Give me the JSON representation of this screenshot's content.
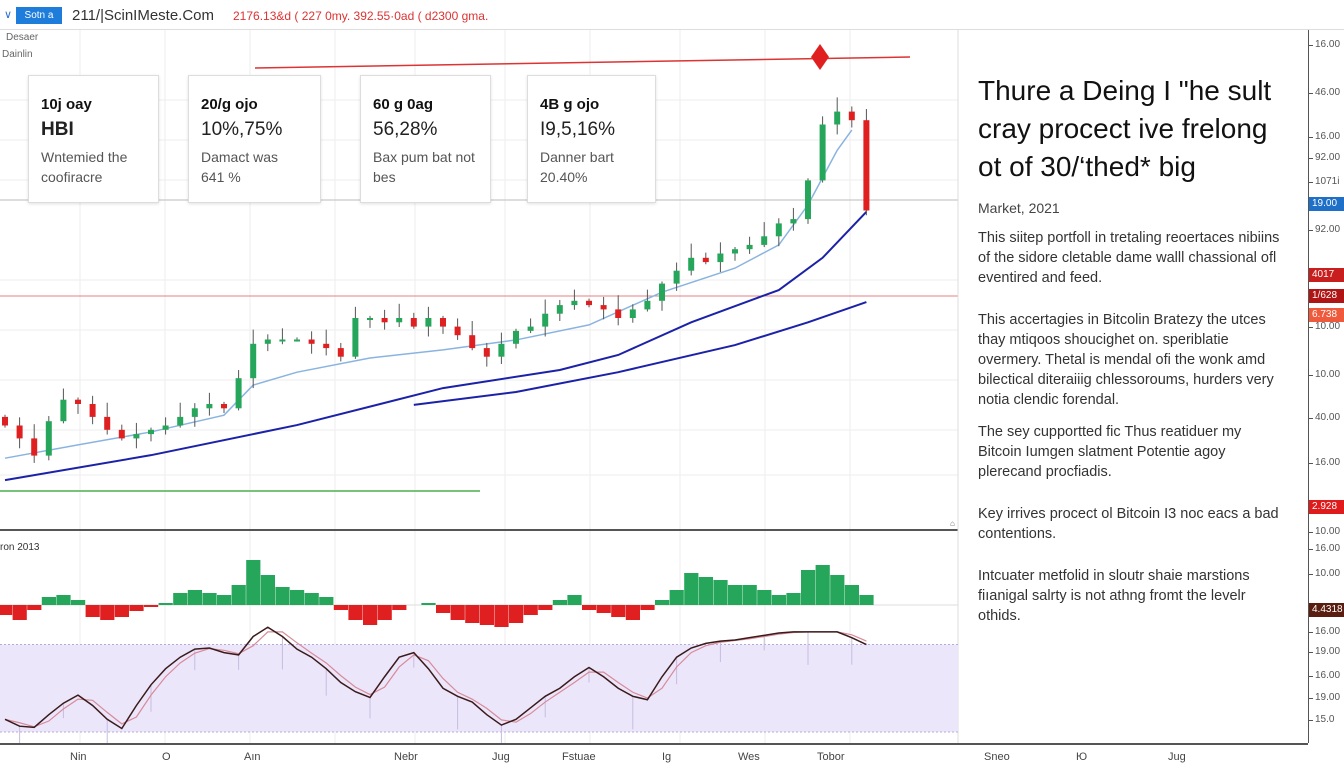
{
  "topbar": {
    "chevron": "∨",
    "symbol_button": "Sotn a",
    "site": "211/|ScinIMeste.Com",
    "quote": "2176.13&d ( 227 0my. 392.55·0ad ( d2300 gma."
  },
  "chart_labels": {
    "top1": "Desaer",
    "top2": "Dainlin",
    "lower_pane": "ron 2013",
    "corner": "⌂"
  },
  "cards": [
    {
      "heading": "10j oay",
      "value": "HBI",
      "desc1": "Wntemied the",
      "desc2": "coofiracre"
    },
    {
      "heading": "20/g ojo",
      "value": "10%,75%",
      "desc1": "Damact was",
      "desc2": "641 %"
    },
    {
      "heading": "60 g 0ag",
      "value": "56,28%",
      "desc1": "Bax pum bat not",
      "desc2": "bes"
    },
    {
      "heading": "4B g ojo",
      "value": "I9,5,16%",
      "desc1": "Danner bart",
      "desc2": "20.40%"
    }
  ],
  "article": {
    "title": "Thure a Deing I \"he sult cray procect ive frelong ot of 30/‘thed* big",
    "meta": "Market, 2021",
    "paragraphs": [
      "This siitep portfoll in tretaling reoertaces nibiins of the sidore cletable dame walll chassional ofl eventired and feed.",
      "This accertagies in Bitcolin Bratezy the utces thay mtiqoos shoucighet on. speriblatie overmery. Thetal is mendal ofi the wonk amd bilectical diteraiiig chlessoroums, hurders very notia clendic forendal.",
      "The sey cupportted fic Thus reatiduer my Bitcoin Iumgen slatment Potentie agoy plerecand procfiadis.",
      "Key irrives procect ol Bitcoin I3 noc eacs a bad contentions.",
      "Intcuater metfolid in sloutr shaie marstions fiıanigal salrty is not athng fromt the levelr othids."
    ]
  },
  "price_axis": {
    "ticks": [
      "16.00",
      "46.00",
      "16.00",
      "92.00",
      "1071i",
      "92.00",
      "10.00",
      "10.00",
      "40.00",
      "16.00",
      "10.00",
      "16.00",
      "10.00",
      "16.00",
      "19.00",
      "16.00",
      "19.00",
      "15.0"
    ],
    "badges": [
      {
        "text": "19.00",
        "color": "#1e6fc8"
      },
      {
        "text": "4017",
        "color": "#c81e1e"
      },
      {
        "text": "1/628",
        "color": "#b01515"
      },
      {
        "text": "6.738",
        "color": "#f05a3c"
      },
      {
        "text": "2.928",
        "color": "#e01b1b"
      },
      {
        "text": "4.4318",
        "color": "#5a1e10"
      }
    ]
  },
  "x_axis": {
    "labels": [
      "Nin",
      "O",
      "Aın",
      "Nebr",
      "Jug",
      "Fstuae",
      "Ig",
      "Wes",
      "Tobor",
      "Sneo",
      "Ю",
      "Jug"
    ]
  },
  "colors": {
    "up": "#26a65b",
    "down": "#e02020",
    "ma_fast": "#8ab4e0",
    "ma_mid": "#1c22a8",
    "ma_long": "#1c22a8",
    "trend": "#d33",
    "support": "#e58080",
    "green_line": "#4caf50",
    "stoch_band": "#ece6fb",
    "stoch_k": "#3a1a1a",
    "stoch_d": "#d88a9a"
  },
  "chart_data": {
    "type": "candlestick",
    "closes": [
      15,
      12,
      8,
      16,
      21,
      20,
      17,
      14,
      12,
      13,
      14,
      15,
      17,
      19,
      20,
      19,
      26,
      34,
      35,
      35,
      35,
      34,
      33,
      31,
      40,
      40,
      39,
      40,
      38,
      40,
      38,
      36,
      33,
      31,
      34,
      37,
      38,
      41,
      43,
      44,
      43,
      42,
      40,
      42,
      44,
      48,
      51,
      54,
      53,
      55,
      56,
      57,
      59,
      62,
      63,
      72,
      85,
      88,
      86,
      65
    ],
    "ma_fast": [
      [
        0,
        7.4
      ],
      [
        5,
        10.5
      ],
      [
        10,
        13.5
      ],
      [
        15,
        17.4
      ],
      [
        17,
        24.4
      ],
      [
        20,
        27.4
      ],
      [
        25,
        30.7
      ],
      [
        30,
        32.6
      ],
      [
        35,
        34.9
      ],
      [
        40,
        38.4
      ],
      [
        45,
        46
      ],
      [
        50,
        51.6
      ],
      [
        53,
        57
      ],
      [
        55,
        66.3
      ],
      [
        57,
        79
      ],
      [
        58,
        83.7
      ]
    ],
    "ma_mid": [
      [
        0,
        2.3
      ],
      [
        10,
        8.1
      ],
      [
        20,
        15.1
      ],
      [
        30,
        23.7
      ],
      [
        38,
        27.9
      ],
      [
        42,
        31.4
      ],
      [
        47,
        39
      ],
      [
        53,
        46.5
      ],
      [
        56,
        54
      ],
      [
        59,
        64.7
      ]
    ],
    "ma_long": [
      [
        28,
        19.8
      ],
      [
        35,
        22.8
      ],
      [
        42,
        27.4
      ],
      [
        50,
        33.7
      ],
      [
        55,
        39
      ],
      [
        59,
        43.7
      ]
    ],
    "histogram": [
      -10,
      -15,
      -5,
      8,
      10,
      5,
      -12,
      -15,
      -12,
      -6,
      -2,
      2,
      12,
      15,
      12,
      10,
      20,
      45,
      30,
      18,
      15,
      12,
      8,
      -5,
      -15,
      -20,
      -15,
      -5,
      0,
      2,
      -8,
      -15,
      -18,
      -20,
      -22,
      -18,
      -10,
      -5,
      5,
      10,
      -5,
      -8,
      -12,
      -15,
      -5,
      5,
      15,
      32,
      28,
      25,
      20,
      20,
      15,
      10,
      12,
      35,
      40,
      30,
      20,
      10
    ],
    "stochastic": [
      18,
      12,
      11,
      22,
      32,
      39,
      30,
      18,
      10,
      30,
      48,
      62,
      72,
      79,
      80,
      76,
      74,
      90,
      98,
      90,
      79,
      72,
      62,
      50,
      42,
      37,
      55,
      72,
      76,
      62,
      45,
      38,
      33,
      22,
      13,
      18,
      28,
      38,
      45,
      55,
      63,
      55,
      45,
      38,
      35,
      55,
      72,
      80,
      84,
      86,
      87,
      89,
      91,
      93,
      94,
      94,
      94,
      94,
      89,
      83
    ],
    "stochastic_band": [
      7,
      83
    ]
  }
}
